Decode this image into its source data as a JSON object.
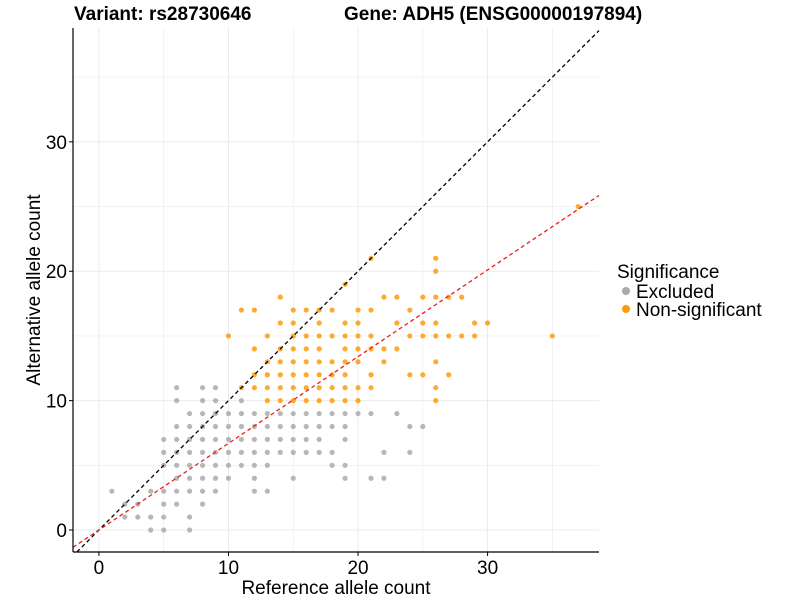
{
  "chart_data": {
    "type": "scatter",
    "title_left": "Variant: rs28730646",
    "title_right": "Gene: ADH5 (ENSG00000197894)",
    "xlabel": "Reference allele count",
    "ylabel": "Alternative allele count",
    "xlim": [
      -2,
      38.6
    ],
    "ylim": [
      -1.7,
      38.8
    ],
    "xticks": [
      0,
      10,
      20,
      30
    ],
    "yticks": [
      0,
      10,
      20,
      30
    ],
    "grid": true,
    "reference_lines": [
      {
        "name": "diagonal",
        "slope": 1,
        "intercept": 0,
        "color": "#000000",
        "style": "dashed"
      },
      {
        "name": "fit",
        "slope": 0.67,
        "intercept": 0,
        "color": "#e8201a",
        "style": "dashed"
      }
    ],
    "legend": {
      "title": "Significance",
      "position": "right",
      "entries": [
        {
          "label": "Excluded",
          "color": "#aaaaaa"
        },
        {
          "label": "Non-significant",
          "color": "#ff9a0a"
        }
      ]
    },
    "series": [
      {
        "name": "Excluded",
        "color": "#aaaaaa",
        "points": [
          [
            1,
            3
          ],
          [
            2,
            1
          ],
          [
            2,
            2
          ],
          [
            3,
            1
          ],
          [
            3,
            2
          ],
          [
            4,
            0
          ],
          [
            4,
            1
          ],
          [
            4,
            3
          ],
          [
            5,
            0
          ],
          [
            5,
            1
          ],
          [
            5,
            2
          ],
          [
            5,
            3
          ],
          [
            5,
            5
          ],
          [
            5,
            6
          ],
          [
            5,
            7
          ],
          [
            6,
            2
          ],
          [
            6,
            3
          ],
          [
            6,
            4
          ],
          [
            6,
            5
          ],
          [
            6,
            6
          ],
          [
            6,
            7
          ],
          [
            6,
            8
          ],
          [
            6,
            10
          ],
          [
            6,
            11
          ],
          [
            7,
            0
          ],
          [
            7,
            1
          ],
          [
            7,
            3
          ],
          [
            7,
            4
          ],
          [
            7,
            5
          ],
          [
            7,
            6
          ],
          [
            7,
            7
          ],
          [
            7,
            8
          ],
          [
            7,
            9
          ],
          [
            8,
            2
          ],
          [
            8,
            3
          ],
          [
            8,
            4
          ],
          [
            8,
            5
          ],
          [
            8,
            6
          ],
          [
            8,
            7
          ],
          [
            8,
            8
          ],
          [
            8,
            9
          ],
          [
            8,
            10
          ],
          [
            8,
            11
          ],
          [
            9,
            3
          ],
          [
            9,
            4
          ],
          [
            9,
            5
          ],
          [
            9,
            6
          ],
          [
            9,
            7
          ],
          [
            9,
            8
          ],
          [
            9,
            9
          ],
          [
            9,
            10
          ],
          [
            9,
            11
          ],
          [
            10,
            4
          ],
          [
            10,
            5
          ],
          [
            10,
            6
          ],
          [
            10,
            7
          ],
          [
            10,
            8
          ],
          [
            10,
            9
          ],
          [
            11,
            5
          ],
          [
            11,
            6
          ],
          [
            11,
            7
          ],
          [
            11,
            8
          ],
          [
            11,
            9
          ],
          [
            11,
            10
          ],
          [
            12,
            3
          ],
          [
            12,
            4
          ],
          [
            12,
            5
          ],
          [
            12,
            6
          ],
          [
            12,
            7
          ],
          [
            12,
            8
          ],
          [
            12,
            9
          ],
          [
            13,
            3
          ],
          [
            13,
            5
          ],
          [
            13,
            6
          ],
          [
            13,
            7
          ],
          [
            13,
            8
          ],
          [
            13,
            9
          ],
          [
            14,
            6
          ],
          [
            14,
            7
          ],
          [
            14,
            8
          ],
          [
            14,
            9
          ],
          [
            15,
            4
          ],
          [
            15,
            6
          ],
          [
            15,
            7
          ],
          [
            15,
            8
          ],
          [
            15,
            9
          ],
          [
            16,
            6
          ],
          [
            16,
            7
          ],
          [
            16,
            8
          ],
          [
            16,
            9
          ],
          [
            17,
            6
          ],
          [
            17,
            7
          ],
          [
            17,
            8
          ],
          [
            17,
            9
          ],
          [
            18,
            5
          ],
          [
            18,
            6
          ],
          [
            18,
            8
          ],
          [
            18,
            9
          ],
          [
            19,
            4
          ],
          [
            19,
            5
          ],
          [
            19,
            7
          ],
          [
            19,
            8
          ],
          [
            19,
            9
          ],
          [
            20,
            9
          ],
          [
            21,
            4
          ],
          [
            21,
            9
          ],
          [
            22,
            4
          ],
          [
            22,
            6
          ],
          [
            23,
            9
          ],
          [
            24,
            6
          ],
          [
            24,
            8
          ],
          [
            25,
            8
          ]
        ]
      },
      {
        "name": "Non-significant",
        "color": "#ff9a0a",
        "points": [
          [
            10,
            15
          ],
          [
            11,
            11
          ],
          [
            11,
            17
          ],
          [
            12,
            11
          ],
          [
            12,
            12
          ],
          [
            12,
            14
          ],
          [
            12,
            17
          ],
          [
            13,
            10
          ],
          [
            13,
            11
          ],
          [
            13,
            12
          ],
          [
            13,
            13
          ],
          [
            13,
            15
          ],
          [
            14,
            10
          ],
          [
            14,
            11
          ],
          [
            14,
            12
          ],
          [
            14,
            13
          ],
          [
            14,
            14
          ],
          [
            14,
            16
          ],
          [
            14,
            18
          ],
          [
            15,
            10
          ],
          [
            15,
            11
          ],
          [
            15,
            12
          ],
          [
            15,
            13
          ],
          [
            15,
            14
          ],
          [
            15,
            15
          ],
          [
            15,
            16
          ],
          [
            15,
            17
          ],
          [
            16,
            10
          ],
          [
            16,
            11
          ],
          [
            16,
            12
          ],
          [
            16,
            13
          ],
          [
            16,
            14
          ],
          [
            16,
            15
          ],
          [
            16,
            17
          ],
          [
            17,
            10
          ],
          [
            17,
            11
          ],
          [
            17,
            12
          ],
          [
            17,
            13
          ],
          [
            17,
            14
          ],
          [
            17,
            15
          ],
          [
            17,
            16
          ],
          [
            17,
            17
          ],
          [
            18,
            10
          ],
          [
            18,
            11
          ],
          [
            18,
            12
          ],
          [
            18,
            13
          ],
          [
            18,
            15
          ],
          [
            18,
            17
          ],
          [
            19,
            10
          ],
          [
            19,
            11
          ],
          [
            19,
            12
          ],
          [
            19,
            13
          ],
          [
            19,
            14
          ],
          [
            19,
            15
          ],
          [
            19,
            16
          ],
          [
            19,
            19
          ],
          [
            20,
            10
          ],
          [
            20,
            11
          ],
          [
            20,
            13
          ],
          [
            20,
            14
          ],
          [
            20,
            15
          ],
          [
            20,
            16
          ],
          [
            20,
            17
          ],
          [
            21,
            11
          ],
          [
            21,
            12
          ],
          [
            21,
            14
          ],
          [
            21,
            15
          ],
          [
            21,
            17
          ],
          [
            21,
            21
          ],
          [
            22,
            13
          ],
          [
            22,
            14
          ],
          [
            22,
            18
          ],
          [
            23,
            14
          ],
          [
            23,
            16
          ],
          [
            23,
            18
          ],
          [
            24,
            12
          ],
          [
            24,
            15
          ],
          [
            24,
            17
          ],
          [
            25,
            12
          ],
          [
            25,
            15
          ],
          [
            25,
            16
          ],
          [
            25,
            18
          ],
          [
            26,
            10
          ],
          [
            26,
            11
          ],
          [
            26,
            13
          ],
          [
            26,
            15
          ],
          [
            26,
            16
          ],
          [
            26,
            18
          ],
          [
            26,
            20
          ],
          [
            26,
            21
          ],
          [
            27,
            12
          ],
          [
            27,
            15
          ],
          [
            27,
            18
          ],
          [
            28,
            15
          ],
          [
            28,
            18
          ],
          [
            29,
            15
          ],
          [
            29,
            16
          ],
          [
            30,
            16
          ],
          [
            35,
            15
          ],
          [
            37,
            25
          ]
        ]
      }
    ]
  }
}
